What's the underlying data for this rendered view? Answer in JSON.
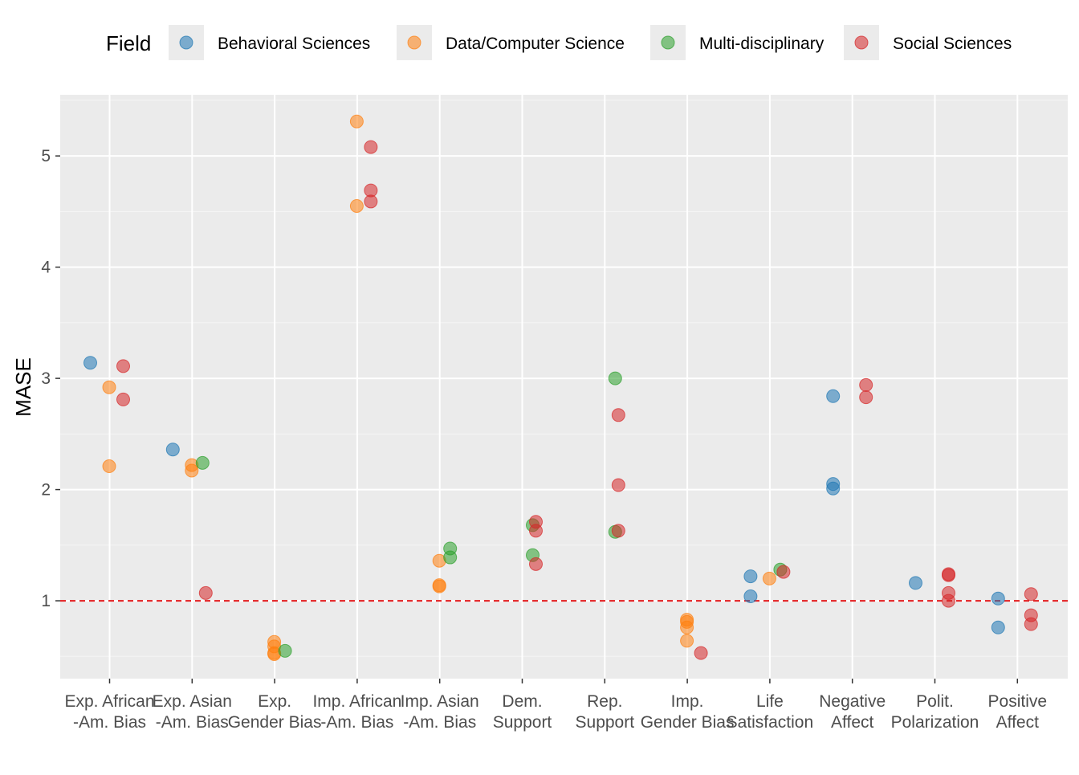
{
  "chart_data": {
    "type": "scatter",
    "title": "",
    "xlabel": "",
    "ylabel": "MASE",
    "ylim": [
      0.3,
      5.55
    ],
    "yticks": [
      1,
      2,
      3,
      4,
      5
    ],
    "grid": true,
    "legend_position": "top",
    "legend_title": "Field",
    "reference_line": {
      "y": 1,
      "style": "dashed",
      "color": "#e31a1c"
    },
    "categories": [
      [
        "Exp. African",
        "-Am. Bias"
      ],
      [
        "Exp. Asian",
        "-Am. Bias"
      ],
      [
        "Exp.",
        "Gender Bias"
      ],
      [
        "Imp. African",
        "-Am. Bias"
      ],
      [
        "Imp. Asian",
        "-Am. Bias"
      ],
      [
        "Dem.",
        "Support"
      ],
      [
        "Rep.",
        "Support"
      ],
      [
        "Imp.",
        "Gender Bias"
      ],
      [
        "Life",
        "Satisfaction"
      ],
      [
        "Negative",
        "Affect"
      ],
      [
        "Polit.",
        "Polarization"
      ],
      [
        "Positive",
        "Affect"
      ]
    ],
    "series": [
      {
        "name": "Behavioral Sciences",
        "color": "#1f77b4",
        "points": [
          {
            "cat": 0,
            "y": 3.14
          },
          {
            "cat": 1,
            "y": 2.36
          },
          {
            "cat": 8,
            "y": 1.22
          },
          {
            "cat": 8,
            "y": 1.04
          },
          {
            "cat": 9,
            "y": 2.84
          },
          {
            "cat": 9,
            "y": 2.05
          },
          {
            "cat": 9,
            "y": 2.01
          },
          {
            "cat": 10,
            "y": 1.16
          },
          {
            "cat": 11,
            "y": 1.02
          },
          {
            "cat": 11,
            "y": 0.76
          }
        ]
      },
      {
        "name": "Data/Computer Science",
        "color": "#ff7f0e",
        "points": [
          {
            "cat": 0,
            "y": 2.92
          },
          {
            "cat": 0,
            "y": 2.21
          },
          {
            "cat": 1,
            "y": 2.22
          },
          {
            "cat": 1,
            "y": 2.17
          },
          {
            "cat": 2,
            "y": 0.63
          },
          {
            "cat": 2,
            "y": 0.59
          },
          {
            "cat": 2,
            "y": 0.53
          },
          {
            "cat": 2,
            "y": 0.52
          },
          {
            "cat": 3,
            "y": 5.31
          },
          {
            "cat": 3,
            "y": 4.55
          },
          {
            "cat": 4,
            "y": 1.36
          },
          {
            "cat": 4,
            "y": 1.14
          },
          {
            "cat": 4,
            "y": 1.13
          },
          {
            "cat": 7,
            "y": 0.83
          },
          {
            "cat": 7,
            "y": 0.81
          },
          {
            "cat": 7,
            "y": 0.76
          },
          {
            "cat": 7,
            "y": 0.64
          },
          {
            "cat": 8,
            "y": 1.2
          }
        ]
      },
      {
        "name": "Multi-disciplinary",
        "color": "#2ca02c",
        "points": [
          {
            "cat": 1,
            "y": 2.24
          },
          {
            "cat": 2,
            "y": 0.55
          },
          {
            "cat": 4,
            "y": 1.47
          },
          {
            "cat": 4,
            "y": 1.39
          },
          {
            "cat": 5,
            "y": 1.68
          },
          {
            "cat": 5,
            "y": 1.41
          },
          {
            "cat": 6,
            "y": 3.0
          },
          {
            "cat": 6,
            "y": 1.62
          },
          {
            "cat": 8,
            "y": 1.28
          }
        ]
      },
      {
        "name": "Social Sciences",
        "color": "#d62728",
        "points": [
          {
            "cat": 0,
            "y": 3.11
          },
          {
            "cat": 0,
            "y": 2.81
          },
          {
            "cat": 1,
            "y": 1.07
          },
          {
            "cat": 3,
            "y": 5.08
          },
          {
            "cat": 3,
            "y": 4.69
          },
          {
            "cat": 3,
            "y": 4.59
          },
          {
            "cat": 5,
            "y": 1.71
          },
          {
            "cat": 5,
            "y": 1.63
          },
          {
            "cat": 5,
            "y": 1.33
          },
          {
            "cat": 6,
            "y": 2.67
          },
          {
            "cat": 6,
            "y": 2.04
          },
          {
            "cat": 6,
            "y": 1.63
          },
          {
            "cat": 7,
            "y": 0.53
          },
          {
            "cat": 8,
            "y": 1.26
          },
          {
            "cat": 9,
            "y": 2.94
          },
          {
            "cat": 9,
            "y": 2.83
          },
          {
            "cat": 10,
            "y": 1.24
          },
          {
            "cat": 10,
            "y": 1.23
          },
          {
            "cat": 10,
            "y": 1.07
          },
          {
            "cat": 10,
            "y": 1.0
          },
          {
            "cat": 11,
            "y": 1.06
          },
          {
            "cat": 11,
            "y": 0.87
          },
          {
            "cat": 11,
            "y": 0.79
          }
        ]
      }
    ]
  }
}
